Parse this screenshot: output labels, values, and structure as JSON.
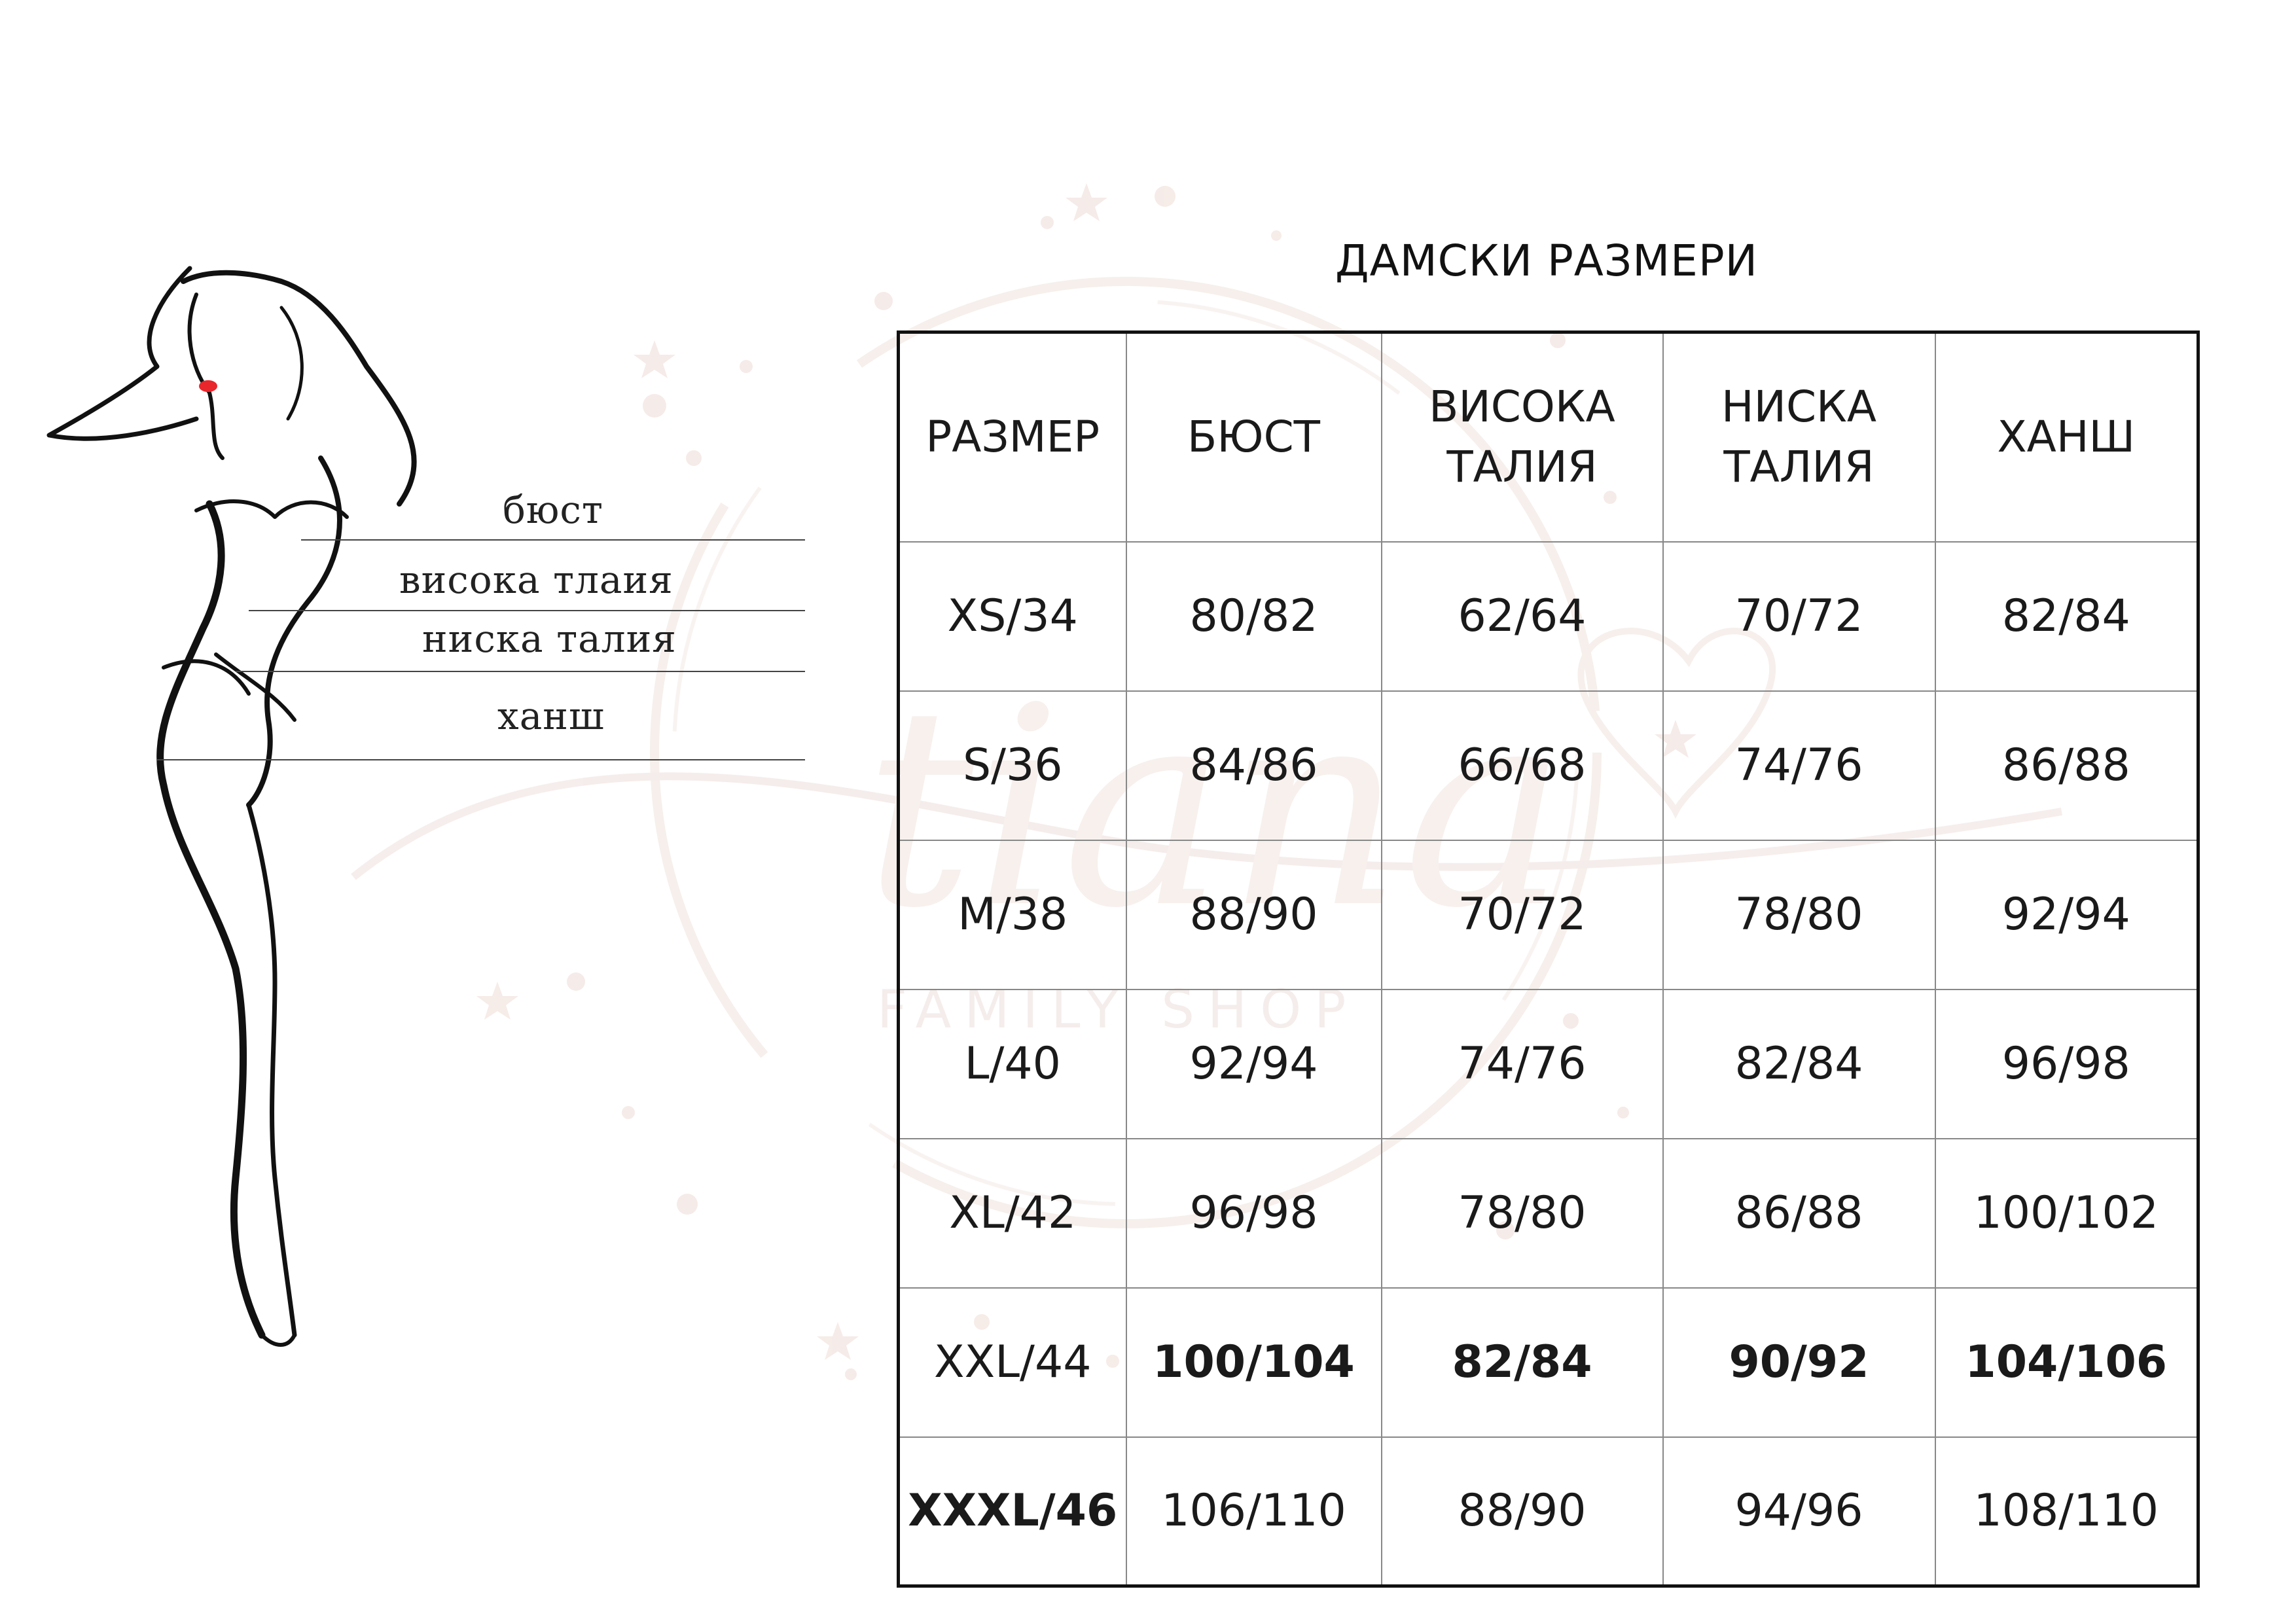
{
  "figure": {
    "labels": [
      "бюст",
      "висока тлаия",
      "ниска талия",
      "ханш"
    ]
  },
  "watermark": {
    "brand": "tiana",
    "tagline": "FAMILY SHOP"
  },
  "table": {
    "title": "ДАМСКИ РАЗМЕРИ",
    "headers": [
      [
        "РАЗМЕР"
      ],
      [
        "БЮСТ"
      ],
      [
        "ВИСОКА",
        "ТАЛИЯ"
      ],
      [
        "НИСКА",
        "ТАЛИЯ"
      ],
      [
        "ХАНШ"
      ]
    ],
    "rows": [
      [
        "XS/34",
        "80/82",
        "62/64",
        "70/72",
        "82/84"
      ],
      [
        "S/36",
        "84/86",
        "66/68",
        "74/76",
        "86/88"
      ],
      [
        "M/38",
        "88/90",
        "70/72",
        "78/80",
        "92/94"
      ],
      [
        "L/40",
        "92/94",
        "74/76",
        "82/84",
        "96/98"
      ],
      [
        "XL/42",
        "96/98",
        "78/80",
        "86/88",
        "100/102"
      ],
      [
        "XXL/44",
        "100/104",
        "82/84",
        "90/92",
        "104/106"
      ],
      [
        "XXXL/46",
        "106/110",
        "88/90",
        "94/96",
        "108/110"
      ]
    ]
  },
  "colors": {
    "line": "#111111",
    "lips": "#e8262c",
    "watermark": "#f1e4e0"
  }
}
